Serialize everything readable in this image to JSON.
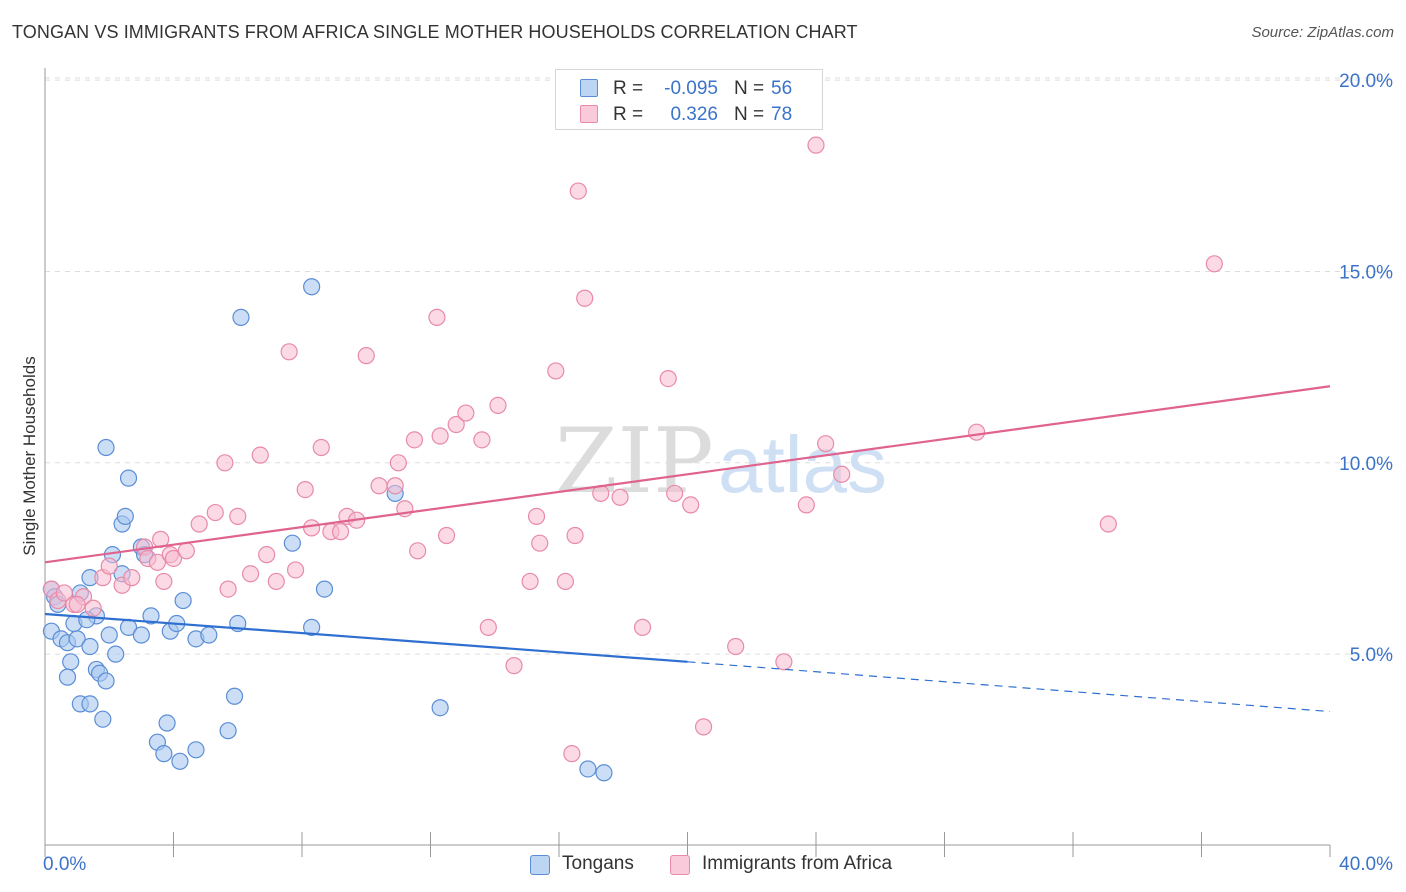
{
  "header": {
    "title": "TONGAN VS IMMIGRANTS FROM AFRICA SINGLE MOTHER HOUSEHOLDS CORRELATION CHART",
    "source": "Source: ZipAtlas.com"
  },
  "watermark": {
    "zip": "ZIP",
    "atlas": "atlas"
  },
  "colors": {
    "tongans_fill": "#a8c8f0",
    "tongans_stroke": "#5b8ed6",
    "tongans_line": "#2f6fd0",
    "africa_fill": "#f7bcd0",
    "africa_stroke": "#e88aa8",
    "africa_line": "#e0628e",
    "axis_text": "#3b73c9",
    "grid": "#dddddd"
  },
  "legend": {
    "rows": [
      {
        "r_label": "R =",
        "r_value": "-0.095",
        "n_label": "N =",
        "n_value": "56"
      },
      {
        "r_label": "R =",
        "r_value": "0.326",
        "n_label": "N =",
        "n_value": "78"
      }
    ]
  },
  "chart_data": {
    "type": "scatter",
    "title": "TONGAN VS IMMIGRANTS FROM AFRICA SINGLE MOTHER HOUSEHOLDS CORRELATION CHART",
    "xlabel": "",
    "ylabel": "Single Mother Households",
    "xlim": [
      0,
      40
    ],
    "ylim": [
      0,
      20
    ],
    "x_tick_labels": [
      "0.0%",
      "40.0%"
    ],
    "y_ticks": [
      5,
      10,
      15,
      20
    ],
    "y_tick_labels": [
      "5.0%",
      "10.0%",
      "15.0%",
      "20.0%"
    ],
    "grid": "horizontal dashed",
    "legend_position": "top-center",
    "series": [
      {
        "name": "Tongans",
        "r": -0.095,
        "n": 56,
        "trend": {
          "x0": 0,
          "y0": 6.05,
          "x1": 20,
          "y1": 4.8,
          "dashed_to_x": 40,
          "dashed_to_y": 3.5
        },
        "points": [
          [
            0.2,
            6.7
          ],
          [
            0.3,
            6.5
          ],
          [
            0.2,
            5.6
          ],
          [
            0.5,
            5.4
          ],
          [
            0.7,
            5.3
          ],
          [
            0.8,
            4.8
          ],
          [
            0.7,
            4.4
          ],
          [
            1.0,
            5.4
          ],
          [
            0.9,
            5.8
          ],
          [
            1.1,
            6.6
          ],
          [
            1.4,
            5.2
          ],
          [
            1.4,
            7.0
          ],
          [
            1.6,
            6.0
          ],
          [
            1.6,
            4.6
          ],
          [
            1.7,
            4.5
          ],
          [
            1.1,
            3.7
          ],
          [
            1.4,
            3.7
          ],
          [
            1.8,
            3.3
          ],
          [
            1.9,
            4.3
          ],
          [
            2.0,
            5.5
          ],
          [
            2.2,
            5.0
          ],
          [
            2.1,
            7.6
          ],
          [
            2.4,
            7.1
          ],
          [
            2.4,
            8.4
          ],
          [
            2.5,
            8.6
          ],
          [
            2.6,
            9.6
          ],
          [
            1.9,
            10.4
          ],
          [
            3.0,
            7.8
          ],
          [
            3.1,
            7.6
          ],
          [
            2.6,
            5.7
          ],
          [
            3.3,
            6.0
          ],
          [
            3.5,
            2.7
          ],
          [
            3.7,
            2.4
          ],
          [
            3.8,
            3.2
          ],
          [
            3.9,
            5.6
          ],
          [
            4.1,
            5.8
          ],
          [
            4.2,
            2.2
          ],
          [
            4.3,
            6.4
          ],
          [
            4.7,
            5.4
          ],
          [
            4.7,
            2.5
          ],
          [
            5.1,
            5.5
          ],
          [
            5.7,
            3.0
          ],
          [
            5.9,
            3.9
          ],
          [
            6.0,
            5.8
          ],
          [
            6.1,
            13.8
          ],
          [
            7.7,
            7.9
          ],
          [
            8.3,
            14.6
          ],
          [
            8.3,
            5.7
          ],
          [
            8.7,
            6.7
          ],
          [
            10.9,
            9.2
          ],
          [
            12.3,
            3.6
          ],
          [
            16.9,
            2.0
          ],
          [
            17.4,
            1.9
          ],
          [
            0.4,
            6.3
          ],
          [
            1.3,
            5.9
          ],
          [
            3.0,
            5.5
          ]
        ]
      },
      {
        "name": "Immigrants from Africa",
        "r": 0.326,
        "n": 78,
        "trend": {
          "x0": 0,
          "y0": 7.4,
          "x1": 40,
          "y1": 12.0
        },
        "points": [
          [
            0.2,
            6.7
          ],
          [
            0.4,
            6.4
          ],
          [
            0.6,
            6.6
          ],
          [
            0.9,
            6.3
          ],
          [
            1.2,
            6.5
          ],
          [
            1.5,
            6.2
          ],
          [
            1.8,
            7.0
          ],
          [
            2.0,
            7.3
          ],
          [
            2.4,
            6.8
          ],
          [
            2.7,
            7.0
          ],
          [
            3.1,
            7.8
          ],
          [
            3.2,
            7.5
          ],
          [
            3.5,
            7.4
          ],
          [
            3.6,
            8.0
          ],
          [
            3.7,
            6.9
          ],
          [
            3.9,
            7.6
          ],
          [
            4.0,
            7.5
          ],
          [
            4.4,
            7.7
          ],
          [
            4.8,
            8.4
          ],
          [
            5.3,
            8.7
          ],
          [
            5.6,
            10.0
          ],
          [
            5.7,
            6.7
          ],
          [
            6.0,
            8.6
          ],
          [
            6.4,
            7.1
          ],
          [
            6.7,
            10.2
          ],
          [
            6.9,
            7.6
          ],
          [
            7.2,
            6.9
          ],
          [
            7.6,
            12.9
          ],
          [
            7.8,
            7.2
          ],
          [
            8.1,
            9.3
          ],
          [
            8.3,
            8.3
          ],
          [
            8.6,
            10.4
          ],
          [
            8.9,
            8.2
          ],
          [
            9.2,
            8.2
          ],
          [
            9.4,
            8.6
          ],
          [
            9.7,
            8.5
          ],
          [
            10.0,
            12.8
          ],
          [
            10.4,
            9.4
          ],
          [
            10.9,
            9.4
          ],
          [
            11.0,
            10.0
          ],
          [
            11.2,
            8.8
          ],
          [
            11.5,
            10.6
          ],
          [
            11.6,
            7.7
          ],
          [
            12.2,
            13.8
          ],
          [
            12.3,
            10.7
          ],
          [
            12.5,
            8.1
          ],
          [
            12.8,
            11.0
          ],
          [
            13.1,
            11.3
          ],
          [
            13.6,
            10.6
          ],
          [
            13.8,
            5.7
          ],
          [
            14.1,
            11.5
          ],
          [
            14.6,
            4.7
          ],
          [
            15.1,
            6.9
          ],
          [
            15.3,
            8.6
          ],
          [
            15.4,
            7.9
          ],
          [
            15.9,
            12.4
          ],
          [
            16.2,
            6.9
          ],
          [
            16.4,
            2.4
          ],
          [
            16.5,
            8.1
          ],
          [
            16.6,
            17.1
          ],
          [
            16.8,
            14.3
          ],
          [
            17.3,
            9.2
          ],
          [
            17.9,
            9.1
          ],
          [
            18.6,
            5.7
          ],
          [
            19.4,
            12.2
          ],
          [
            19.6,
            9.2
          ],
          [
            20.1,
            8.9
          ],
          [
            20.5,
            3.1
          ],
          [
            21.5,
            5.2
          ],
          [
            23.0,
            4.8
          ],
          [
            23.7,
            8.9
          ],
          [
            24.0,
            18.3
          ],
          [
            24.3,
            10.5
          ],
          [
            24.8,
            9.7
          ],
          [
            29.0,
            10.8
          ],
          [
            33.1,
            8.4
          ],
          [
            36.4,
            15.2
          ],
          [
            1.0,
            6.3
          ]
        ]
      }
    ]
  },
  "bottom_legend": {
    "items": [
      "Tongans",
      "Immigrants from Africa"
    ]
  }
}
